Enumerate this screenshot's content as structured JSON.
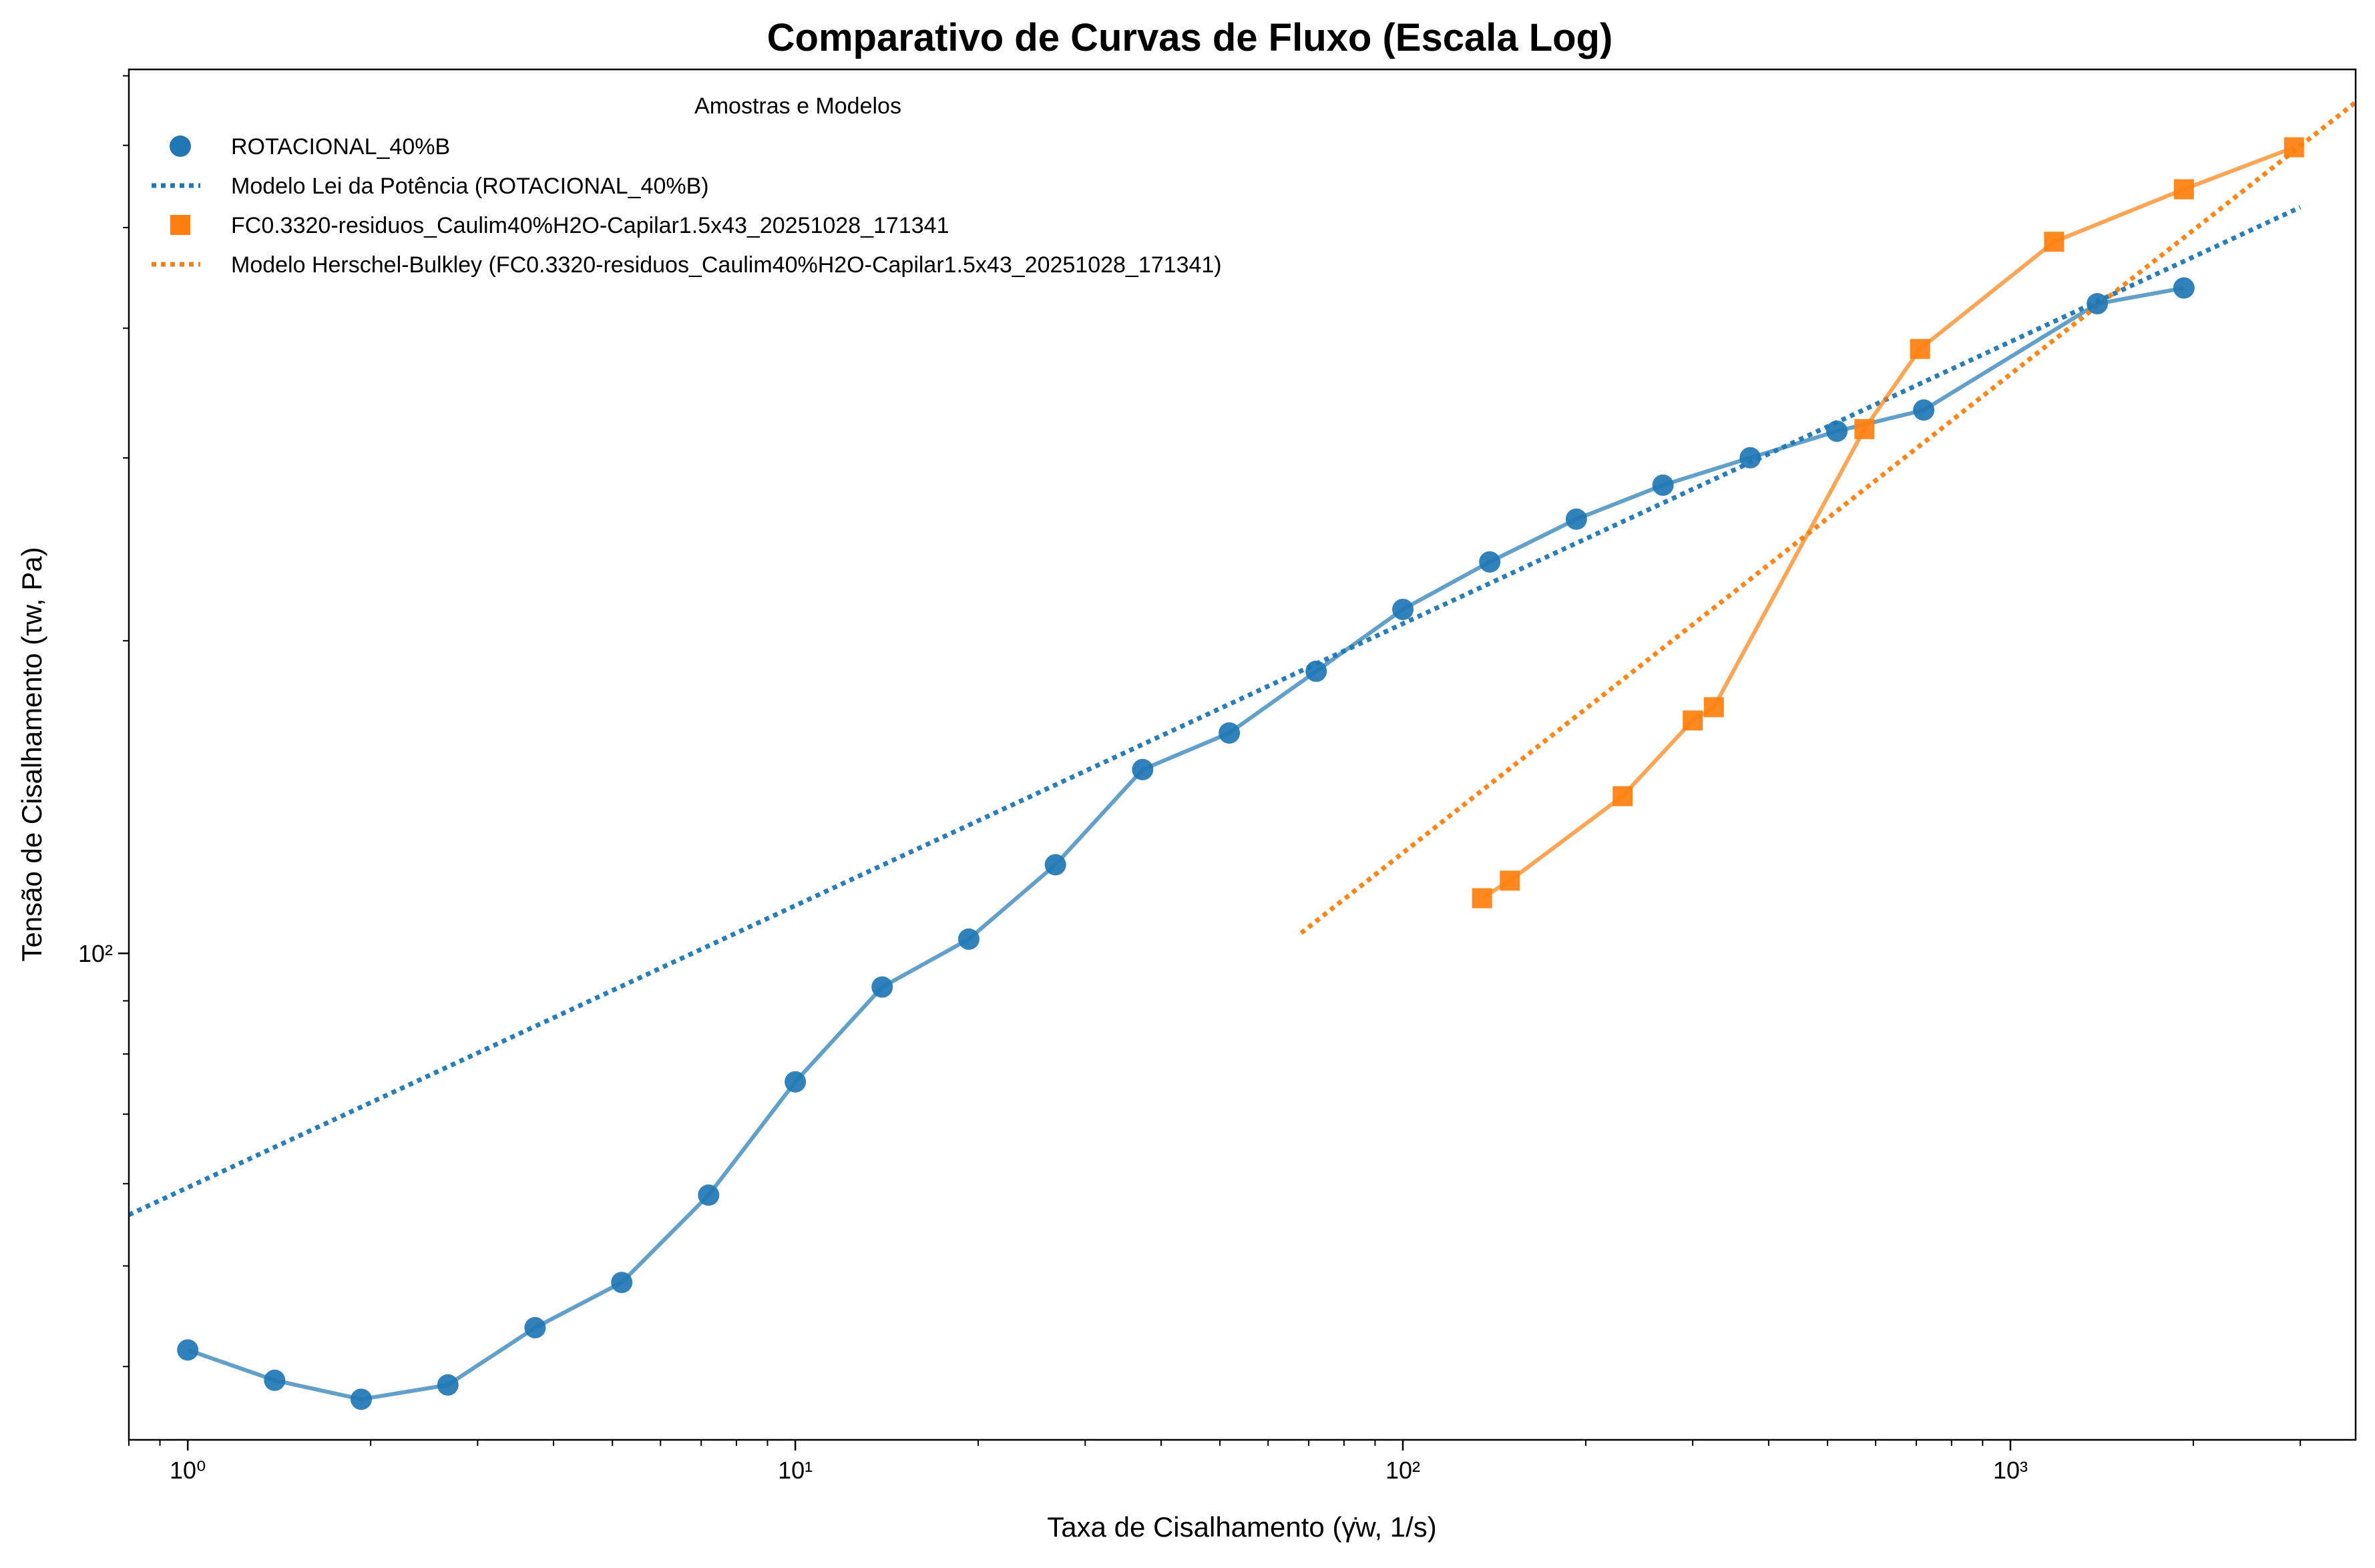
{
  "chart_data": {
    "type": "scatter",
    "title": "Comparativo de Curvas de Fluxo (Escala Log)",
    "xlabel": "Taxa de Cisalhamento (γ̇w, 1/s)",
    "ylabel": "Tensão de Cisalhamento (τw, Pa)",
    "xscale": "log",
    "yscale": "log",
    "xlim": [
      0.8,
      3700
    ],
    "ylim": [
      34,
      710
    ],
    "x_ticks": [
      {
        "value": 1,
        "label": "10⁰"
      },
      {
        "value": 10,
        "label": "10¹"
      },
      {
        "value": 100,
        "label": "10²"
      },
      {
        "value": 1000,
        "label": "10³"
      }
    ],
    "y_ticks": [
      {
        "value": 100,
        "label": "10²"
      }
    ],
    "grid": false,
    "legend": {
      "title": "Amostras e Modelos",
      "placement": "top-left"
    },
    "series": [
      {
        "name": "ROTACIONAL_40%B",
        "kind": "markers+line",
        "marker": "circle",
        "color": "#1f77b4",
        "x": [
          1.0,
          1.39,
          1.93,
          2.68,
          3.73,
          5.18,
          7.2,
          10.0,
          13.9,
          19.3,
          26.8,
          37.3,
          51.8,
          72.0,
          100,
          139,
          193,
          268,
          373,
          518,
          720,
          1390,
          1930
        ],
        "y": [
          41.5,
          38.8,
          37.2,
          38.4,
          43.6,
          48.2,
          58.5,
          75.2,
          92.8,
          103.2,
          121.7,
          150.3,
          163.0,
          186.9,
          214.4,
          238.2,
          261.9,
          282.4,
          300.1,
          318.3,
          333.6,
          422.3,
          437.3
        ]
      },
      {
        "name": "Modelo Lei da Potência (ROTACIONAL_40%B)",
        "kind": "dotted-line",
        "color": "#1f77b4",
        "x": [
          0.8,
          3000
        ],
        "y": [
          56.0,
          523.0
        ]
      },
      {
        "name": "FC0.3320-residuos_Caulim40%H2O-Capilar1.5x43_20251028_171341",
        "kind": "markers+line",
        "marker": "square",
        "color": "#ff7f0e",
        "x": [
          135,
          150,
          230,
          300,
          325,
          575,
          710,
          1180,
          1930,
          2930
        ],
        "y": [
          113.0,
          117.5,
          141.7,
          167.6,
          172.6,
          319.8,
          382.0,
          484.5,
          544.3,
          597.4
        ]
      },
      {
        "name": "Modelo Herschel-Bulkley (FC0.3320-residuos_Caulim40%H2O-Capilar1.5x43_20251028_171341)",
        "kind": "dotted-line",
        "color": "#ff7f0e",
        "x": [
          68,
          3700
        ],
        "y": [
          104.6,
          660.0
        ]
      }
    ]
  }
}
